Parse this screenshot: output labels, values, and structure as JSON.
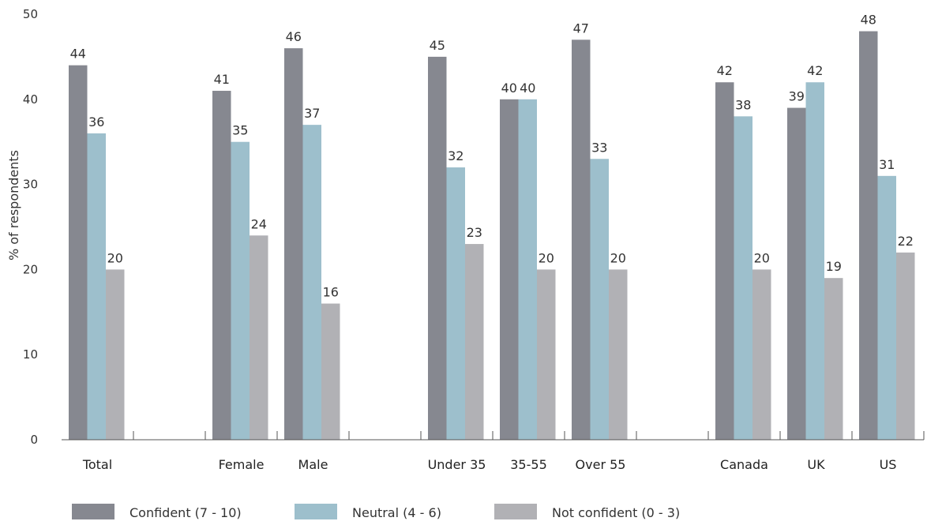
{
  "chart_data": {
    "type": "bar",
    "ylabel": "% of respondents",
    "ylim": [
      0,
      50
    ],
    "yticks": [
      0,
      10,
      20,
      30,
      40,
      50
    ],
    "grid": false,
    "legend_position": "bottom",
    "categories": [
      "Total",
      "",
      "Female",
      "Male",
      "",
      "Under 35",
      "35-55",
      "Over 55",
      "",
      "Canada",
      "UK",
      "US"
    ],
    "series": [
      {
        "name": "Confident (7 - 10)",
        "color": "#868890",
        "values": [
          44,
          null,
          41,
          46,
          null,
          45,
          40,
          47,
          null,
          42,
          39,
          48
        ]
      },
      {
        "name": "Neutral (4 - 6)",
        "color": "#9dbfcc",
        "values": [
          36,
          null,
          35,
          37,
          null,
          32,
          40,
          33,
          null,
          38,
          42,
          31
        ]
      },
      {
        "name": "Not confident (0 - 3)",
        "color": "#b1b1b5",
        "values": [
          20,
          null,
          24,
          16,
          null,
          23,
          20,
          20,
          null,
          20,
          19,
          22
        ]
      }
    ]
  }
}
